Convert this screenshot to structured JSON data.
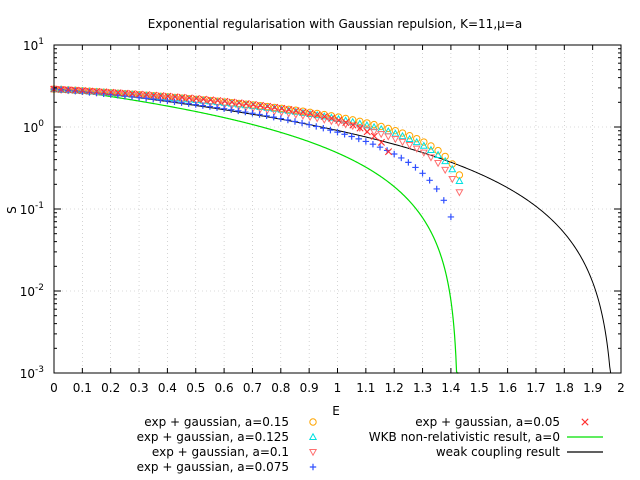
{
  "chart_data": {
    "type": "scatter",
    "title": "Exponential regularisation with Gaussian repulsion, K=11,μ=a",
    "xlabel": "E",
    "ylabel": "S",
    "xlim": [
      0,
      2
    ],
    "ylim": [
      0.001,
      10
    ],
    "yscale": "log",
    "grid": true,
    "x_ticks": [
      "0",
      "0.1",
      "0.2",
      "0.3",
      "0.4",
      "0.5",
      "0.6",
      "0.7",
      "0.8",
      "0.9",
      "1",
      "1.1",
      "1.2",
      "1.3",
      "1.4",
      "1.5",
      "1.6",
      "1.7",
      "1.8",
      "1.9",
      "2"
    ],
    "y_ticks": [
      {
        "base": "10",
        "exp": "-3"
      },
      {
        "base": "10",
        "exp": "-2"
      },
      {
        "base": "10",
        "exp": "-1"
      },
      {
        "base": "10",
        "exp": "0"
      },
      {
        "base": "10",
        "exp": "1"
      }
    ],
    "series": [
      {
        "name": "exp + gaussian, a=0.15",
        "marker": "circle",
        "color": "#ffa500",
        "x_end": 1.43,
        "y_end": 0.26
      },
      {
        "name": "exp + gaussian, a=0.125",
        "marker": "triangle",
        "color": "#00e0e0",
        "x_end": 1.43,
        "y_end": 0.22
      },
      {
        "name": "exp + gaussian, a=0.1",
        "marker": "triangle-down",
        "color": "#ff7070",
        "x_end": 1.43,
        "y_end": 0.16
      },
      {
        "name": "exp + gaussian, a=0.075",
        "marker": "plus",
        "color": "#3050ff",
        "x_end": 1.4,
        "y_end": 0.08
      },
      {
        "name": "exp + gaussian, a=0.05",
        "marker": "cross",
        "color": "#ff3030",
        "x_end": 1.18,
        "y_end": 0.5
      },
      {
        "name": "WKB non-relativistic result, a=0",
        "marker": "line",
        "color": "#00e000",
        "x_end": 1.427
      },
      {
        "name": "weak coupling result",
        "marker": "line",
        "color": "#000000",
        "x_end": 1.98
      }
    ]
  }
}
